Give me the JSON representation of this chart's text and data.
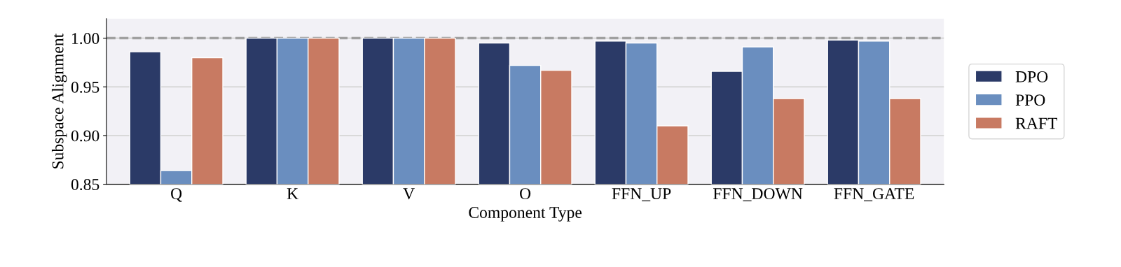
{
  "chart_data": {
    "type": "bar",
    "xlabel": "Component Type",
    "ylabel": "Subspace Alignment",
    "categories": [
      "Q",
      "K",
      "V",
      "O",
      "FFN_UP",
      "FFN_DOWN",
      "FFN_GATE"
    ],
    "series": [
      {
        "name": "DPO",
        "color": "#2b3a67",
        "values": [
          0.986,
          1.0,
          1.0,
          0.995,
          0.997,
          0.966,
          0.998
        ]
      },
      {
        "name": "PPO",
        "color": "#6a8ebf",
        "values": [
          0.864,
          1.0,
          1.0,
          0.972,
          0.995,
          0.991,
          0.997
        ]
      },
      {
        "name": "RAFT",
        "color": "#c87a62",
        "values": [
          0.98,
          1.0,
          1.0,
          0.967,
          0.91,
          0.938,
          0.938
        ]
      }
    ],
    "ylim": [
      0.85,
      1.02
    ],
    "yticks": [
      {
        "value": 0.85,
        "label": "0.85"
      },
      {
        "value": 0.9,
        "label": "0.90"
      },
      {
        "value": 0.95,
        "label": "0.95"
      },
      {
        "value": 1.0,
        "label": "1.00"
      }
    ],
    "ref_lines": [
      {
        "axis": "y",
        "value": 1.0,
        "color": "#a0a0a0",
        "line_style": "dashed"
      }
    ],
    "grid": "y",
    "legend": "right"
  }
}
